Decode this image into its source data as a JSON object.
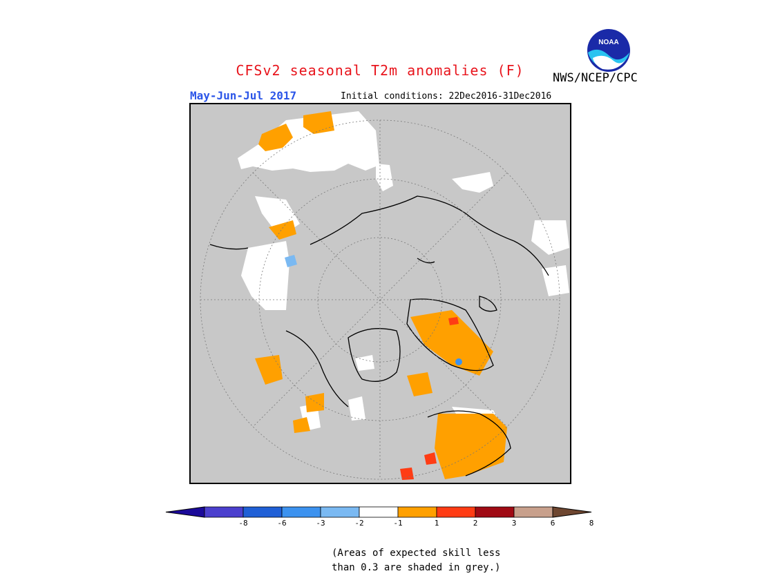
{
  "header": {
    "title": "CFSv2 seasonal T2m anomalies (F)",
    "agency": "NWS/NCEP/CPC",
    "logo_text": "NOAA",
    "season": "May-Jun-Jul 2017",
    "initial_conditions": "Initial conditions: 22Dec2016-31Dec2016"
  },
  "colorbar": {
    "colors": [
      "#1b0a9a",
      "#4b3fce",
      "#1f5fd6",
      "#3c92ef",
      "#7ab9f2",
      "#ffffff",
      "#ffa000",
      "#ff3c14",
      "#a00a14",
      "#c8a08c",
      "#6e4630"
    ],
    "ticks": [
      "-8",
      "-6",
      "-3",
      "-2",
      "-1",
      "1",
      "2",
      "3",
      "6",
      "8"
    ]
  },
  "colors": {
    "missing_skill_grey": "#c8c8c8",
    "warm_1_2": "#ffa000",
    "warm_2_3": "#ff3c14",
    "cool_2_1": "#7ab9f2",
    "near_normal": "#ffffff"
  },
  "note": {
    "line1": "(Areas of expected skill less",
    "line2": "than 0.3 are shaded in grey.)"
  }
}
